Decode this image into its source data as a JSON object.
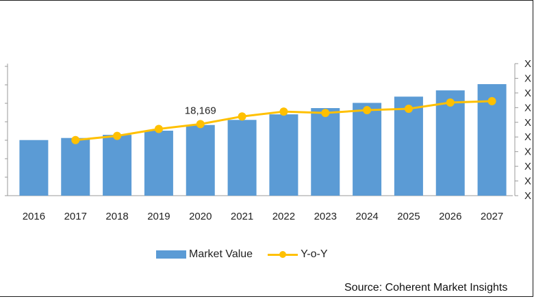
{
  "chart_data": {
    "type": "bar+line",
    "categories": [
      "2016",
      "2017",
      "2018",
      "2019",
      "2020",
      "2021",
      "2022",
      "2023",
      "2024",
      "2025",
      "2026",
      "2027"
    ],
    "series": [
      {
        "name": "Market Value",
        "type": "bar",
        "color": "#5b9bd5",
        "values": [
          16000,
          16300,
          16750,
          17350,
          18169,
          18900,
          19700,
          20600,
          21350,
          22250,
          23150,
          24050
        ]
      },
      {
        "name": "Y-o-Y",
        "type": "line",
        "color": "#ffc000",
        "values": [
          null,
          5.0,
          5.6,
          6.6,
          7.3,
          8.4,
          9.1,
          8.9,
          9.3,
          9.5,
          10.4,
          10.6
        ]
      }
    ],
    "annotations": [
      {
        "category": "2020",
        "text": "18,169"
      }
    ],
    "right_axis_ticks": [
      "X",
      "X",
      "X",
      "X",
      "X",
      "X",
      "X",
      "X",
      "X",
      "X"
    ],
    "legend_position": "bottom",
    "source": "Source: Coherent Market Insights"
  }
}
